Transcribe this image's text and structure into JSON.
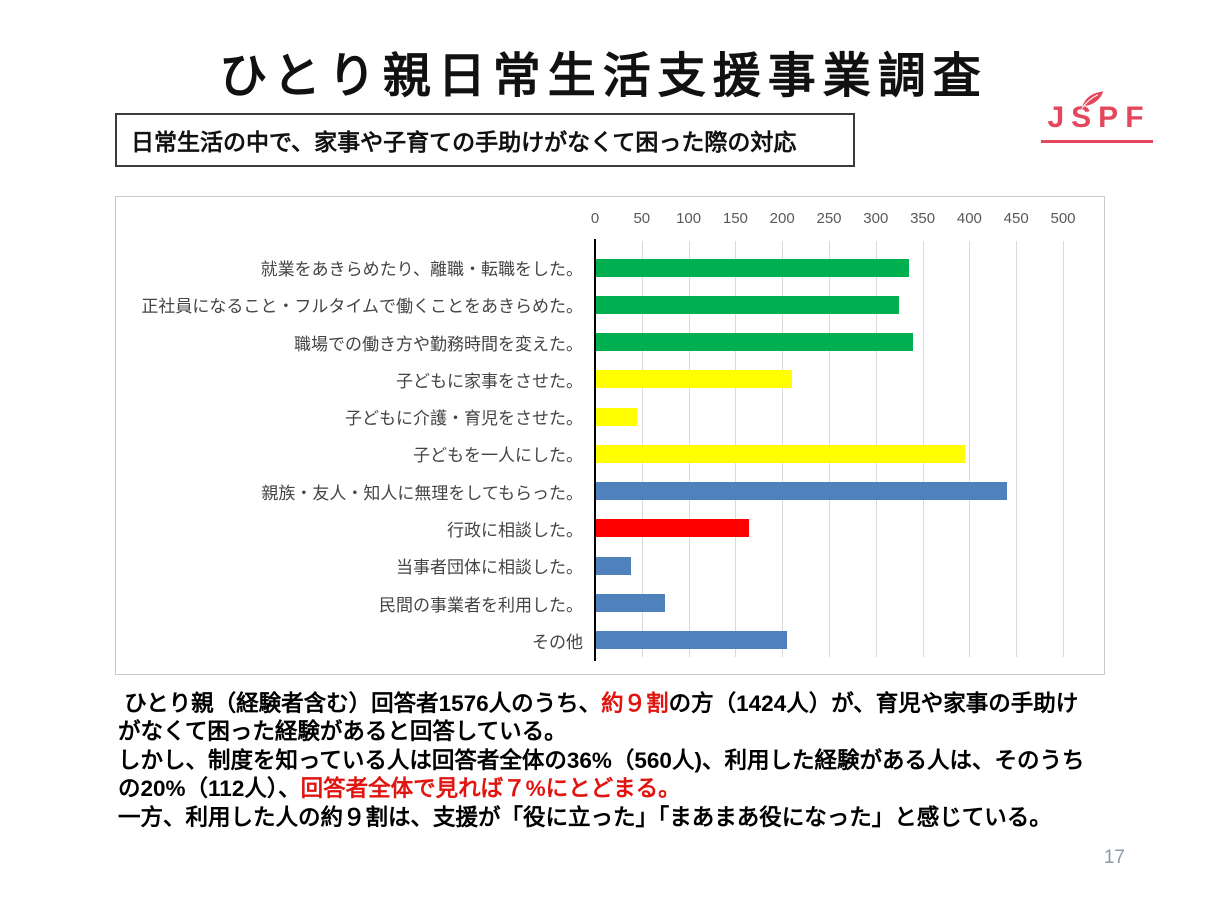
{
  "title": "ひとり親日常生活支援事業調査",
  "logo": {
    "text": "JSPF",
    "color": "#e4475c"
  },
  "subtitle": "日常生活の中で、家事や子育ての手助けがなくて困った際の対応",
  "chart_data": {
    "type": "bar",
    "orientation": "horizontal",
    "xlim": [
      0,
      500
    ],
    "x_ticks": [
      0,
      50,
      100,
      150,
      200,
      250,
      300,
      350,
      400,
      450,
      500
    ],
    "grid": true,
    "legend": "none",
    "categories": [
      "就業をあきらめたり、離職・転職をした。",
      "正社員になること・フルタイムで働くことをあきらめた。",
      "職場での働き方や勤務時間を変えた。",
      "子どもに家事をさせた。",
      "子どもに介護・育児をさせた。",
      "子どもを一人にした。",
      "親族・友人・知人に無理をしてもらった。",
      "行政に相談した。",
      "当事者団体に相談した。",
      "民間の事業者を利用した。",
      "その他"
    ],
    "values": [
      335,
      325,
      340,
      210,
      45,
      395,
      440,
      165,
      38,
      75,
      205
    ],
    "bar_colors": [
      "#00B050",
      "#00B050",
      "#00B050",
      "#FFFF00",
      "#FFFF00",
      "#FFFF00",
      "#4F81BD",
      "#FF0000",
      "#4F81BD",
      "#4F81BD",
      "#4F81BD"
    ]
  },
  "summary": {
    "red_color": "#e01510",
    "lines": [
      [
        {
          "text": " ひとり親（経験者含む）回答者1576人のうち、"
        },
        {
          "text": "約９割",
          "red": true
        },
        {
          "text": "の方（1424人）が、育児や家事の手助け"
        }
      ],
      [
        {
          "text": "がなくて困った経験があると回答している。"
        }
      ],
      [
        {
          "text": "しかし、制度を知っている人は回答者全体の36%（560人)、利用した経験がある人は、そのうち"
        }
      ],
      [
        {
          "text": "の20%（112人）、"
        },
        {
          "text": "回答者全体で見れば７%にとどまる。",
          "red": true
        }
      ],
      [
        {
          "text": "一方、利用した人の約９割は、支援が「役に立った」「まあまあ役になった」と感じている。"
        }
      ]
    ]
  },
  "page_number": "17"
}
